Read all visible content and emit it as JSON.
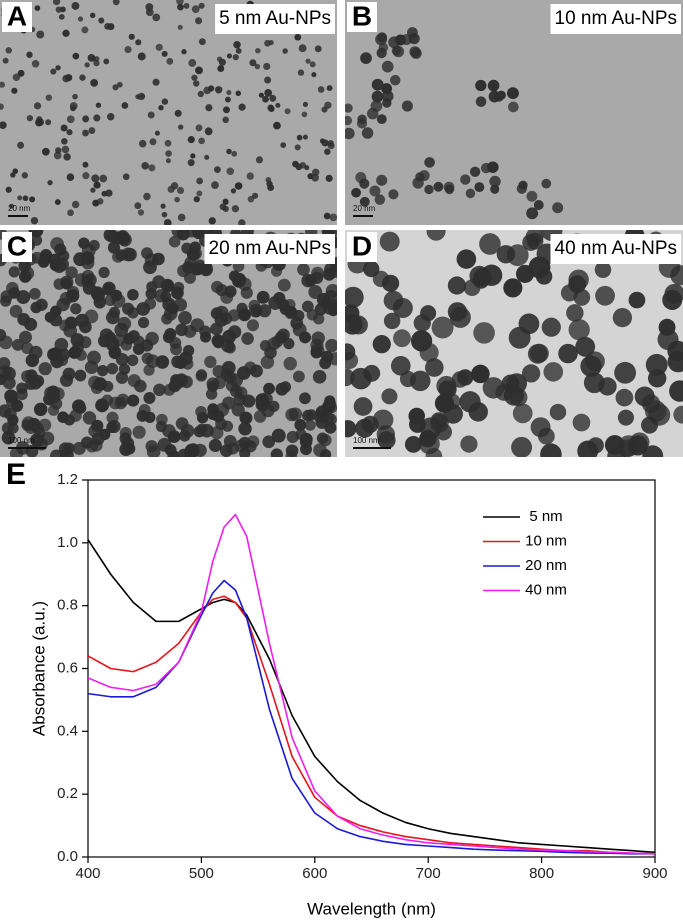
{
  "panels": [
    {
      "letter": "A",
      "caption": "5 nm Au-NPs",
      "scale_bar": "20 nm"
    },
    {
      "letter": "B",
      "caption": "10 nm Au-NPs",
      "scale_bar": "20 nm"
    },
    {
      "letter": "C",
      "caption": "20 nm Au-NPs",
      "scale_bar": "100 nm"
    },
    {
      "letter": "D",
      "caption": "40 nm Au-NPs",
      "scale_bar": "100 nm"
    }
  ],
  "chart_data": {
    "type": "line",
    "panel_label": "E",
    "x_label": "Wavelength (nm)",
    "y_label": "Absorbance (a.u.)",
    "x": [
      400,
      420,
      440,
      460,
      480,
      500,
      510,
      520,
      530,
      540,
      560,
      580,
      600,
      620,
      640,
      660,
      680,
      700,
      720,
      740,
      760,
      780,
      800,
      820,
      840,
      860,
      880,
      900
    ],
    "series": [
      {
        "name": "5 nm",
        "color": "#000000",
        "values": [
          1.01,
          0.9,
          0.81,
          0.75,
          0.75,
          0.79,
          0.81,
          0.82,
          0.81,
          0.77,
          0.63,
          0.45,
          0.32,
          0.24,
          0.18,
          0.14,
          0.11,
          0.09,
          0.075,
          0.065,
          0.055,
          0.045,
          0.04,
          0.035,
          0.03,
          0.025,
          0.02,
          0.015
        ]
      },
      {
        "name": "10 nm",
        "color": "#e8141c",
        "values": [
          0.64,
          0.6,
          0.59,
          0.62,
          0.68,
          0.78,
          0.82,
          0.83,
          0.81,
          0.76,
          0.55,
          0.32,
          0.19,
          0.13,
          0.1,
          0.08,
          0.065,
          0.055,
          0.045,
          0.04,
          0.035,
          0.03,
          0.025,
          0.02,
          0.02,
          0.015,
          0.012,
          0.01
        ]
      },
      {
        "name": "20 nm",
        "color": "#1a1ad6",
        "values": [
          0.52,
          0.51,
          0.51,
          0.54,
          0.62,
          0.77,
          0.84,
          0.88,
          0.85,
          0.76,
          0.47,
          0.25,
          0.14,
          0.09,
          0.065,
          0.05,
          0.04,
          0.035,
          0.03,
          0.025,
          0.022,
          0.02,
          0.018,
          0.015,
          0.013,
          0.012,
          0.01,
          0.01
        ]
      },
      {
        "name": "40 nm",
        "color": "#f01ef0",
        "values": [
          0.57,
          0.54,
          0.53,
          0.55,
          0.62,
          0.78,
          0.94,
          1.05,
          1.09,
          1.02,
          0.68,
          0.38,
          0.21,
          0.13,
          0.09,
          0.07,
          0.055,
          0.045,
          0.04,
          0.035,
          0.03,
          0.025,
          0.022,
          0.02,
          0.017,
          0.015,
          0.012,
          0.01
        ]
      }
    ],
    "xlim": [
      400,
      900
    ],
    "ylim": [
      0,
      1.2
    ],
    "xticks": [
      400,
      500,
      600,
      700,
      800,
      900
    ],
    "yticks": [
      {
        "value": 0,
        "label": "0.0"
      },
      0.2,
      0.4,
      0.6,
      0.8,
      {
        "value": 1,
        "label": "1.0"
      },
      1.2
    ],
    "legend": "upper right"
  }
}
